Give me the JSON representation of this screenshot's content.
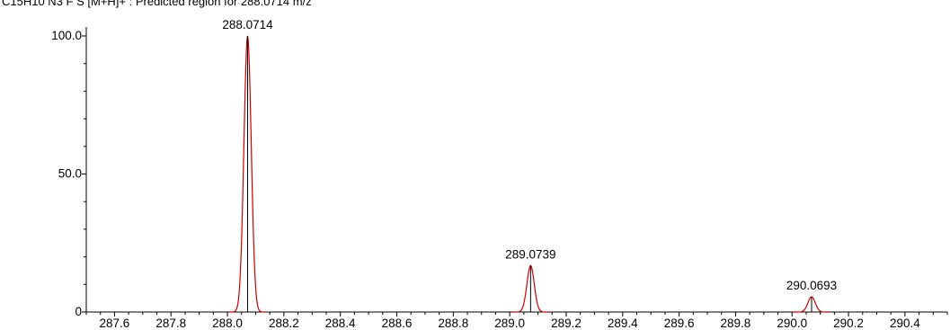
{
  "chart_data": {
    "type": "line",
    "title": "C15H10 N3 F S [M+H]+ : Predicted region for 288.0714 m/z",
    "xlabel": "",
    "ylabel": "",
    "xlim": [
      287.5,
      290.55
    ],
    "ylim": [
      0,
      100
    ],
    "x_ticks": [
      "287.6",
      "287.8",
      "288.0",
      "288.2",
      "288.4",
      "288.6",
      "288.8",
      "289.0",
      "289.2",
      "289.4",
      "289.6",
      "289.8",
      "290.0",
      "290.2",
      "290.4"
    ],
    "y_ticks": [
      "0",
      "50.0",
      "100.0"
    ],
    "grid": false,
    "colors": {
      "profile": "#cc0000",
      "stick": "#000000",
      "axis": "#000000"
    },
    "series": [
      {
        "peaks": [
          {
            "x": 288.0714,
            "y": 100.0,
            "label": "288.0714"
          },
          {
            "x": 289.0739,
            "y": 16.8,
            "label": "289.0739"
          },
          {
            "x": 290.0693,
            "y": 5.5,
            "label": "290.0693"
          }
        ]
      }
    ]
  }
}
